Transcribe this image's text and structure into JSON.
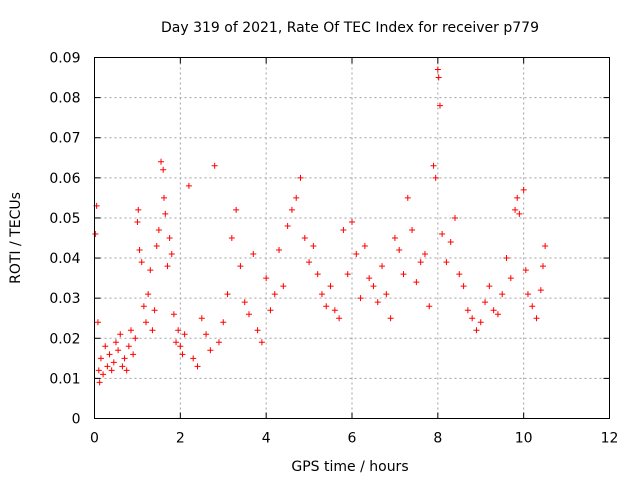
{
  "chart_data": {
    "type": "scatter",
    "title": "Day 319 of 2021, Rate Of TEC Index for receiver p779",
    "xlabel": "GPS time / hours",
    "ylabel": "ROTI / TECUs",
    "xlim": [
      0,
      12
    ],
    "ylim": [
      0,
      0.09
    ],
    "xticks": [
      0,
      2,
      4,
      6,
      8,
      10,
      12
    ],
    "yticks": [
      0,
      0.01,
      0.02,
      0.03,
      0.04,
      0.05,
      0.06,
      0.07,
      0.08,
      0.09
    ],
    "xtick_labels": [
      "0",
      "2",
      "4",
      "6",
      "8",
      "10",
      "12"
    ],
    "ytick_labels": [
      "0",
      "0.01",
      "0.02",
      "0.03",
      "0.04",
      "0.05",
      "0.06",
      "0.07",
      "0.08",
      "0.09"
    ],
    "grid": true,
    "marker": "+",
    "color": "#ff0000",
    "series": [
      {
        "name": "ROTI",
        "x": [
          0.02,
          0.05,
          0.08,
          0.1,
          0.12,
          0.15,
          0.2,
          0.25,
          0.3,
          0.35,
          0.4,
          0.45,
          0.5,
          0.55,
          0.6,
          0.65,
          0.7,
          0.75,
          0.8,
          0.85,
          0.9,
          0.95,
          1.0,
          1.02,
          1.05,
          1.1,
          1.15,
          1.2,
          1.25,
          1.3,
          1.35,
          1.4,
          1.45,
          1.5,
          1.55,
          1.6,
          1.62,
          1.65,
          1.7,
          1.75,
          1.8,
          1.85,
          1.9,
          1.95,
          2.0,
          2.05,
          2.1,
          2.2,
          2.3,
          2.4,
          2.5,
          2.6,
          2.7,
          2.8,
          2.9,
          3.0,
          3.1,
          3.2,
          3.3,
          3.4,
          3.5,
          3.6,
          3.7,
          3.8,
          3.9,
          4.0,
          4.1,
          4.2,
          4.3,
          4.4,
          4.5,
          4.6,
          4.7,
          4.8,
          4.9,
          5.0,
          5.1,
          5.2,
          5.3,
          5.4,
          5.5,
          5.6,
          5.7,
          5.8,
          5.9,
          6.0,
          6.1,
          6.2,
          6.3,
          6.4,
          6.5,
          6.6,
          6.7,
          6.8,
          6.9,
          7.0,
          7.1,
          7.2,
          7.3,
          7.4,
          7.5,
          7.6,
          7.7,
          7.8,
          7.9,
          7.95,
          8.0,
          8.02,
          8.05,
          8.1,
          8.2,
          8.3,
          8.4,
          8.5,
          8.6,
          8.7,
          8.8,
          8.9,
          9.0,
          9.1,
          9.2,
          9.3,
          9.4,
          9.5,
          9.6,
          9.7,
          9.8,
          9.85,
          9.9,
          10.0,
          10.05,
          10.1,
          10.2,
          10.3,
          10.4,
          10.45,
          10.5
        ],
        "y": [
          0.046,
          0.053,
          0.024,
          0.012,
          0.009,
          0.015,
          0.011,
          0.018,
          0.013,
          0.016,
          0.012,
          0.014,
          0.019,
          0.017,
          0.021,
          0.013,
          0.015,
          0.012,
          0.018,
          0.022,
          0.016,
          0.02,
          0.049,
          0.052,
          0.042,
          0.039,
          0.028,
          0.024,
          0.031,
          0.037,
          0.022,
          0.027,
          0.043,
          0.047,
          0.064,
          0.062,
          0.055,
          0.051,
          0.038,
          0.045,
          0.041,
          0.026,
          0.019,
          0.022,
          0.018,
          0.016,
          0.021,
          0.058,
          0.015,
          0.013,
          0.025,
          0.021,
          0.017,
          0.063,
          0.019,
          0.024,
          0.031,
          0.045,
          0.052,
          0.038,
          0.029,
          0.026,
          0.041,
          0.022,
          0.019,
          0.035,
          0.027,
          0.031,
          0.042,
          0.033,
          0.048,
          0.052,
          0.055,
          0.06,
          0.045,
          0.039,
          0.043,
          0.036,
          0.031,
          0.028,
          0.033,
          0.027,
          0.025,
          0.047,
          0.036,
          0.049,
          0.041,
          0.03,
          0.043,
          0.035,
          0.033,
          0.029,
          0.038,
          0.031,
          0.025,
          0.045,
          0.042,
          0.036,
          0.055,
          0.047,
          0.034,
          0.039,
          0.041,
          0.028,
          0.063,
          0.06,
          0.087,
          0.085,
          0.078,
          0.046,
          0.039,
          0.044,
          0.05,
          0.036,
          0.033,
          0.027,
          0.025,
          0.022,
          0.024,
          0.029,
          0.033,
          0.027,
          0.026,
          0.031,
          0.04,
          0.035,
          0.052,
          0.055,
          0.051,
          0.057,
          0.037,
          0.031,
          0.028,
          0.025,
          0.032,
          0.038,
          0.043
        ]
      }
    ]
  }
}
